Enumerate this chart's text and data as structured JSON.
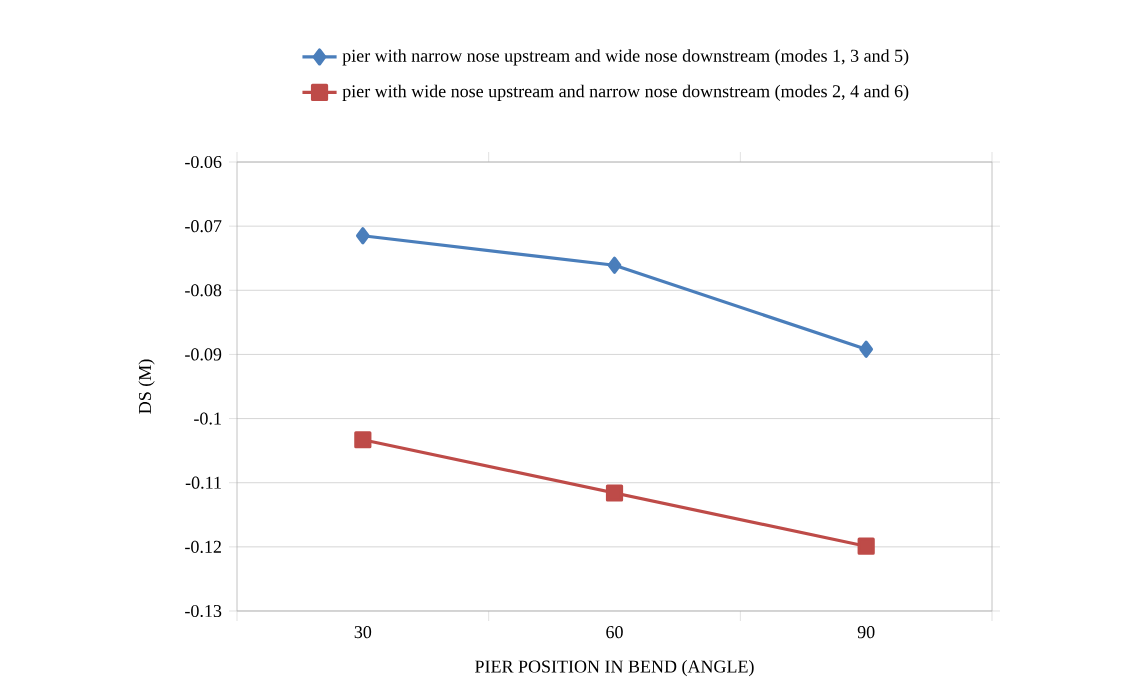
{
  "chart_data": {
    "type": "line",
    "xlabel": "PIER POSITION IN BEND (ANGLE)",
    "ylabel": "DS (M)",
    "categories": [
      "30",
      "60",
      "90"
    ],
    "series": [
      {
        "name": "pier with narrow nose upstream and wide nose downstream (modes 1, 3 and 5)",
        "color": "#4a7ebb",
        "marker": "diamond",
        "values": [
          -0.0715,
          -0.0761,
          -0.0892
        ]
      },
      {
        "name": "pier with wide nose upstream and narrow nose downstream (modes 2, 4 and 6)",
        "color": "#be4b48",
        "marker": "square",
        "values": [
          -0.1033,
          -0.1116,
          -0.1199
        ]
      }
    ],
    "ylim": [
      -0.13,
      -0.06
    ],
    "yticks": [
      -0.13,
      -0.12,
      -0.11,
      -0.1,
      -0.09,
      -0.08,
      -0.07,
      -0.06
    ],
    "grid": "y",
    "legend": "top",
    "line_style": "solid"
  }
}
